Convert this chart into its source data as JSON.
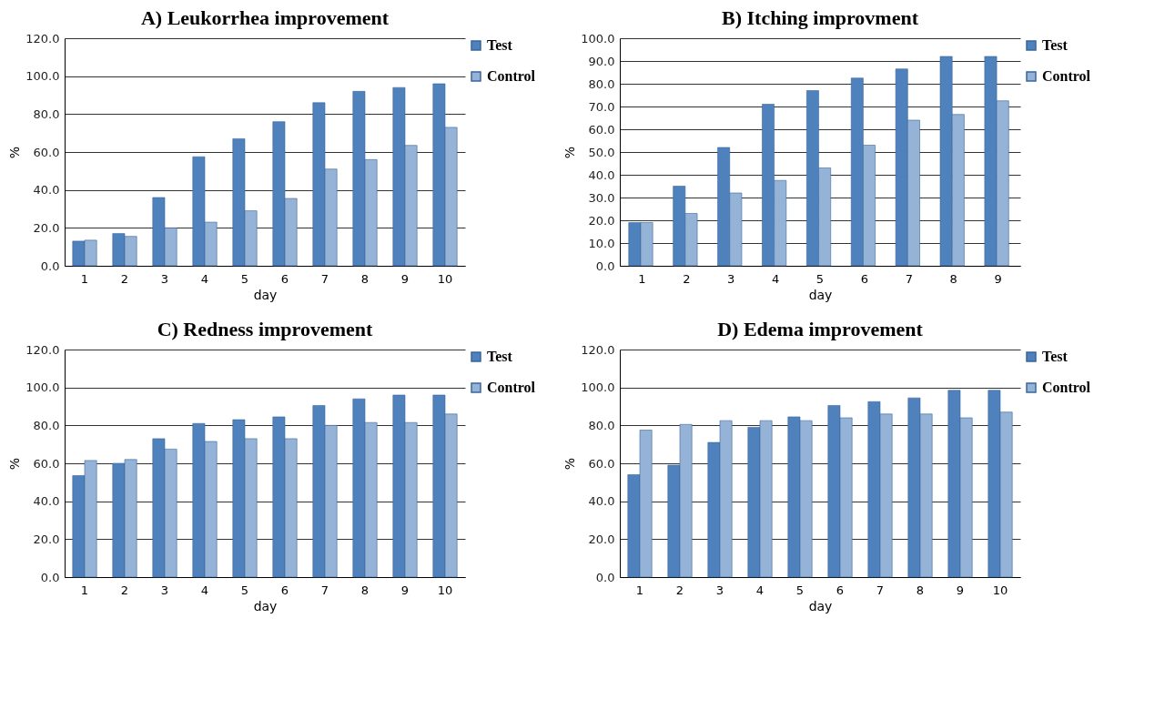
{
  "chart_data": [
    {
      "type": "bar",
      "title": "A) Leukorrhea  improvement",
      "xlabel": "day",
      "ylabel": "%",
      "categories": [
        "1",
        "2",
        "3",
        "4",
        "5",
        "6",
        "7",
        "8",
        "9",
        "10"
      ],
      "series": [
        {
          "name": "Test",
          "color": "#4f81bd",
          "values": [
            13,
            17,
            36,
            57.5,
            67,
            76,
            86,
            92,
            94,
            96
          ]
        },
        {
          "name": "Control",
          "color": "#95b3d7",
          "values": [
            13.5,
            15.5,
            20,
            23,
            29,
            35.5,
            51,
            56,
            63.5,
            73
          ]
        }
      ],
      "ylim": [
        0,
        120
      ],
      "yticks": [
        {
          "value": 0,
          "label": "0.0"
        },
        {
          "value": 20,
          "label": "20.0"
        },
        {
          "value": 40,
          "label": "40.0"
        },
        {
          "value": 60,
          "label": "60.0"
        },
        {
          "value": 80,
          "label": "80.0"
        },
        {
          "value": 100,
          "label": "100.0"
        },
        {
          "value": 120,
          "label": "120.0"
        }
      ],
      "grid": "y",
      "legend": "right"
    },
    {
      "type": "bar",
      "title": "B) Itching improvment",
      "xlabel": "day",
      "ylabel": "%",
      "categories": [
        "1",
        "2",
        "3",
        "4",
        "5",
        "6",
        "7",
        "8",
        "9"
      ],
      "series": [
        {
          "name": "Test",
          "color": "#4f81bd",
          "values": [
            19,
            35,
            52,
            71,
            77,
            82.5,
            86.5,
            92,
            92
          ]
        },
        {
          "name": "Control",
          "color": "#95b3d7",
          "values": [
            19,
            23,
            32,
            37.5,
            43,
            53,
            64,
            66.5,
            72.5
          ]
        }
      ],
      "ylim": [
        0,
        100
      ],
      "yticks": [
        {
          "value": 0,
          "label": "0.0"
        },
        {
          "value": 10,
          "label": "10.0"
        },
        {
          "value": 20,
          "label": "20.0"
        },
        {
          "value": 30,
          "label": "30.0"
        },
        {
          "value": 40,
          "label": "40.0"
        },
        {
          "value": 50,
          "label": "50.0"
        },
        {
          "value": 60,
          "label": "60.0"
        },
        {
          "value": 70,
          "label": "70.0"
        },
        {
          "value": 80,
          "label": "80.0"
        },
        {
          "value": 90,
          "label": "90.0"
        },
        {
          "value": 100,
          "label": "100.0"
        }
      ],
      "grid": "y",
      "legend": "right"
    },
    {
      "type": "bar",
      "title": "C) Redness improvement",
      "xlabel": "day",
      "ylabel": "%",
      "categories": [
        "1",
        "2",
        "3",
        "4",
        "5",
        "6",
        "7",
        "8",
        "9",
        "10"
      ],
      "series": [
        {
          "name": "Test",
          "color": "#4f81bd",
          "values": [
            53.5,
            60,
            73,
            81,
            83,
            84.5,
            90.5,
            94,
            96,
            96
          ]
        },
        {
          "name": "Control",
          "color": "#95b3d7",
          "values": [
            61.5,
            62,
            67.5,
            71.5,
            73,
            73,
            80,
            81.5,
            81.5,
            86
          ]
        }
      ],
      "ylim": [
        0,
        120
      ],
      "yticks": [
        {
          "value": 0,
          "label": "0.0"
        },
        {
          "value": 20,
          "label": "20.0"
        },
        {
          "value": 40,
          "label": "40.0"
        },
        {
          "value": 60,
          "label": "60.0"
        },
        {
          "value": 80,
          "label": "80.0"
        },
        {
          "value": 100,
          "label": "100.0"
        },
        {
          "value": 120,
          "label": "120.0"
        }
      ],
      "grid": "y",
      "legend": "right"
    },
    {
      "type": "bar",
      "title": "D) Edema improvement",
      "xlabel": "day",
      "ylabel": "%",
      "categories": [
        "1",
        "2",
        "3",
        "4",
        "5",
        "6",
        "7",
        "8",
        "9",
        "10"
      ],
      "series": [
        {
          "name": "Test",
          "color": "#4f81bd",
          "values": [
            54,
            59,
            71,
            79,
            84.5,
            90.5,
            92.5,
            94.5,
            98.5,
            98.5
          ]
        },
        {
          "name": "Control",
          "color": "#95b3d7",
          "values": [
            77.5,
            80.5,
            82.5,
            82.5,
            82.5,
            84,
            86,
            86,
            84,
            87
          ]
        }
      ],
      "ylim": [
        0,
        120
      ],
      "yticks": [
        {
          "value": 0,
          "label": "0.0"
        },
        {
          "value": 20,
          "label": "20.0"
        },
        {
          "value": 40,
          "label": "40.0"
        },
        {
          "value": 60,
          "label": "60.0"
        },
        {
          "value": 80,
          "label": "80.0"
        },
        {
          "value": 100,
          "label": "100.0"
        },
        {
          "value": 120,
          "label": "120.0"
        }
      ],
      "grid": "y",
      "legend": "right"
    }
  ]
}
